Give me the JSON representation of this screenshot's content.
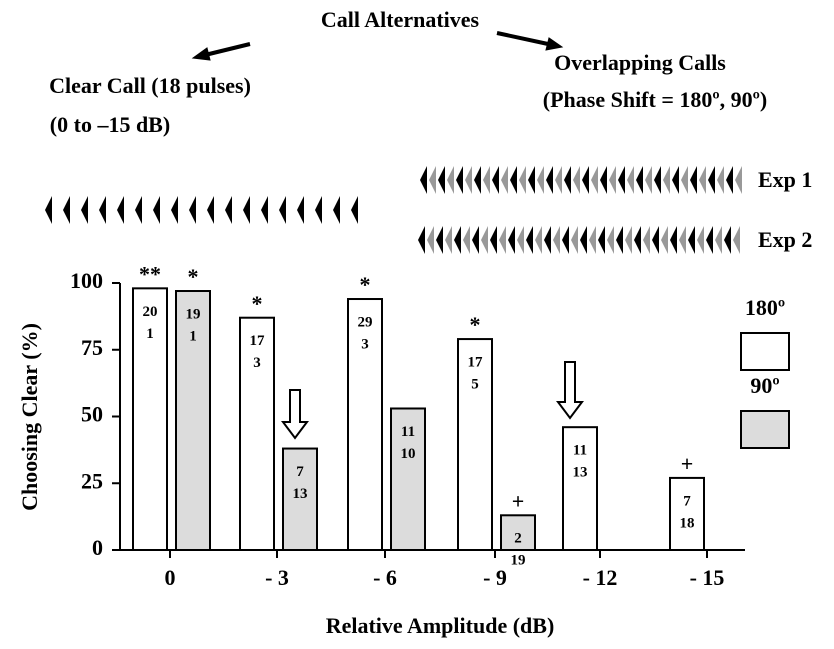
{
  "chart_data": {
    "type": "bar",
    "title": "Call Alternatives",
    "left_label": [
      "Clear Call (18 pulses)",
      "(0  to –15 dB)"
    ],
    "right_label": [
      "Overlapping Calls",
      "(Phase Shift = 180º, 90º)"
    ],
    "exp_labels": [
      "Exp 1",
      "Exp 2"
    ],
    "x_label": "Relative Amplitude (dB)",
    "y_label": "Choosing Clear (%)",
    "categories": [
      "0",
      "- 3",
      "- 6",
      "- 9",
      "- 12",
      "- 15"
    ],
    "series": [
      {
        "name": "180º",
        "color": "#ffffff",
        "values": [
          98,
          87,
          94,
          79,
          46,
          27
        ],
        "counts": [
          [
            20,
            1
          ],
          [
            17,
            3
          ],
          [
            29,
            3
          ],
          [
            17,
            5
          ],
          [
            11,
            13
          ],
          [
            7,
            18
          ]
        ],
        "marks": [
          "**",
          "*",
          "*",
          "*",
          null,
          "+"
        ]
      },
      {
        "name": "90º",
        "color": "#dcdcdc",
        "values": [
          97,
          38,
          53,
          13,
          null,
          null
        ],
        "counts": [
          [
            19,
            1
          ],
          [
            7,
            13
          ],
          [
            11,
            10
          ],
          [
            2,
            19
          ],
          null,
          null
        ],
        "marks": [
          "*",
          null,
          null,
          "+",
          null,
          null
        ]
      }
    ],
    "ylim": [
      0,
      100
    ],
    "yticks": [
      0,
      25,
      50,
      75,
      100
    ]
  }
}
